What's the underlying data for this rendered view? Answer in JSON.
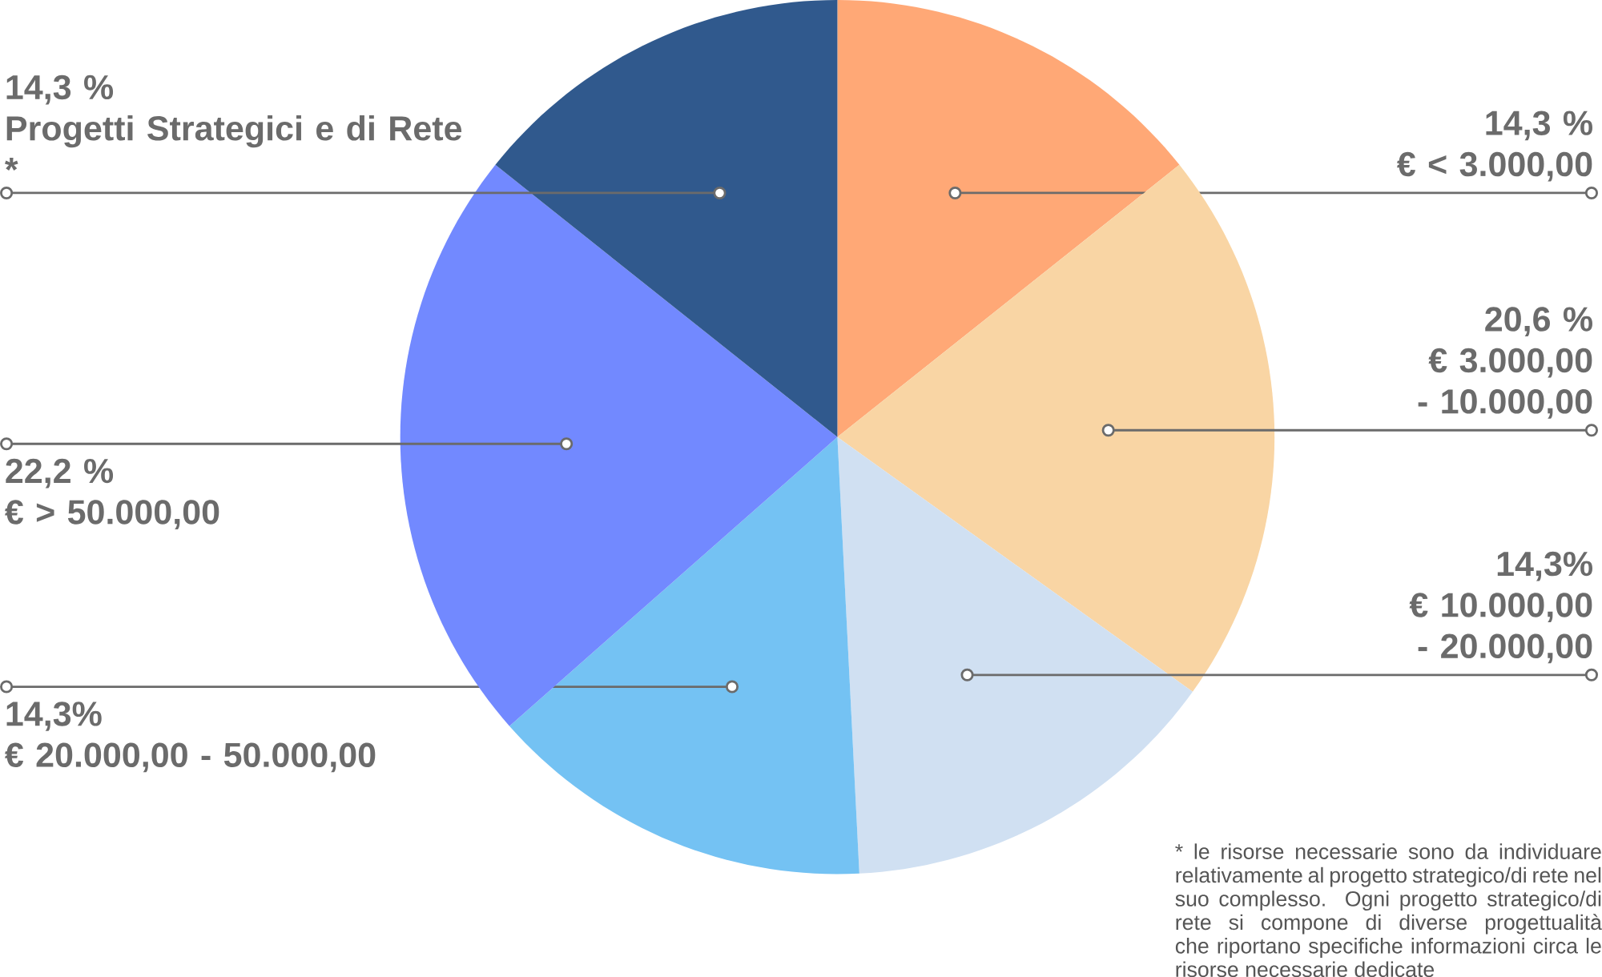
{
  "chart_data": {
    "type": "pie",
    "categories": [
      "€ < 3.000,00",
      "€ 3.000,00 - 10.000,00",
      "€ 10.000,00 - 20.000,00",
      "€ 20.000,00 - 50.000,00",
      "€ > 50.000,00",
      "Progetti Strategici e di Rete *"
    ],
    "values": [
      14.3,
      20.6,
      14.3,
      14.3,
      22.2,
      14.3
    ],
    "value_labels": [
      "14,3 %",
      "20,6 %",
      "14,3%",
      "14,3%",
      "22,2 %",
      "14,3 %"
    ],
    "colors": [
      "#ffa876",
      "#f9d5a4",
      "#d0e0f2",
      "#74c2f3",
      "#7289ff",
      "#30598d"
    ],
    "annotations": [
      "* le risorse necessarie sono da individuare relativamente al progetto strategico/di rete nel suo complesso. Ogni progetto strategico/di rete si compone di diverse progettualità che riportano specifiche informazioni circa le risorse necessarie dedicate"
    ]
  }
}
